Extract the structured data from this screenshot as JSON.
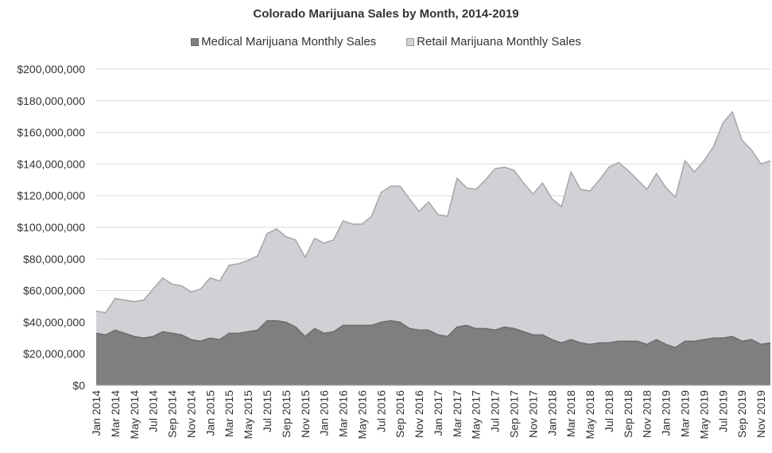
{
  "chart_data": {
    "type": "area",
    "stacked": true,
    "title": "Colorado Marijuana Sales by Month, 2014-2019",
    "xlabel": "",
    "ylabel": "",
    "ylim": [
      0,
      200000000
    ],
    "yticks": [
      0,
      20000000,
      40000000,
      60000000,
      80000000,
      100000000,
      120000000,
      140000000,
      160000000,
      180000000,
      200000000
    ],
    "ytick_labels": [
      "$0",
      "$20,000,000",
      "$40,000,000",
      "$60,000,000",
      "$80,000,000",
      "$100,000,000",
      "$120,000,000",
      "$140,000,000",
      "$160,000,000",
      "$180,000,000",
      "$200,000,000"
    ],
    "xtick_labels": [
      "Jan 2014",
      "Mar 2014",
      "May 2014",
      "Jul 2014",
      "Sep 2014",
      "Nov 2014",
      "Jan 2015",
      "Mar 2015",
      "May 2015",
      "Jul 2015",
      "Sep 2015",
      "Nov 2015",
      "Jan 2016",
      "Mar 2016",
      "May 2016",
      "Jul 2016",
      "Sep 2016",
      "Nov 2016",
      "Jan 2017",
      "Mar 2017",
      "May 2017",
      "Jul 2017",
      "Sep 2017",
      "Nov 2017",
      "Jan 2018",
      "Mar 2018",
      "May 2018",
      "Jul 2018",
      "Sep 2018",
      "Nov 2018",
      "Jan 2019",
      "Mar 2019",
      "May 2019",
      "Jul 2019",
      "Sep 2019",
      "Nov 2019"
    ],
    "grid": true,
    "legend_position": "top-center",
    "series": [
      {
        "name": "Medical Marijuana Monthly Sales",
        "color": "#7f7f7f",
        "values": [
          33000000,
          32000000,
          35000000,
          33000000,
          31000000,
          30000000,
          31000000,
          34000000,
          33000000,
          32000000,
          29000000,
          28000000,
          30000000,
          29000000,
          33000000,
          33000000,
          34000000,
          35000000,
          41000000,
          41000000,
          40000000,
          37000000,
          31000000,
          36000000,
          33000000,
          34000000,
          38000000,
          38000000,
          38000000,
          38000000,
          40000000,
          41000000,
          40000000,
          36000000,
          35000000,
          35000000,
          32000000,
          31000000,
          37000000,
          38000000,
          36000000,
          36000000,
          35000000,
          37000000,
          36000000,
          34000000,
          32000000,
          32000000,
          29000000,
          27000000,
          29000000,
          27000000,
          26000000,
          27000000,
          27000000,
          28000000,
          28000000,
          28000000,
          26000000,
          29000000,
          26000000,
          24000000,
          28000000,
          28000000,
          29000000,
          30000000,
          30000000,
          31000000,
          28000000,
          29000000,
          26000000,
          27000000
        ]
      },
      {
        "name": "Retail Marijuana Monthly Sales",
        "color": "#d2d0d5",
        "values": [
          14000000,
          14000000,
          20000000,
          21000000,
          22000000,
          24000000,
          30000000,
          34000000,
          31000000,
          31000000,
          30000000,
          33000000,
          38000000,
          37000000,
          43000000,
          44000000,
          45000000,
          47000000,
          55000000,
          58000000,
          54000000,
          55000000,
          50000000,
          57000000,
          57000000,
          58000000,
          66000000,
          64000000,
          64000000,
          69000000,
          82000000,
          85000000,
          86000000,
          82000000,
          75000000,
          81000000,
          76000000,
          76000000,
          94000000,
          87000000,
          88000000,
          94000000,
          102000000,
          101000000,
          100000000,
          94000000,
          89000000,
          96000000,
          89000000,
          86000000,
          106000000,
          97000000,
          97000000,
          103000000,
          111000000,
          113000000,
          108000000,
          102000000,
          98000000,
          105000000,
          99000000,
          95000000,
          114000000,
          107000000,
          113000000,
          121000000,
          136000000,
          142000000,
          127000000,
          120000000,
          114000000,
          115000000
        ]
      }
    ]
  }
}
